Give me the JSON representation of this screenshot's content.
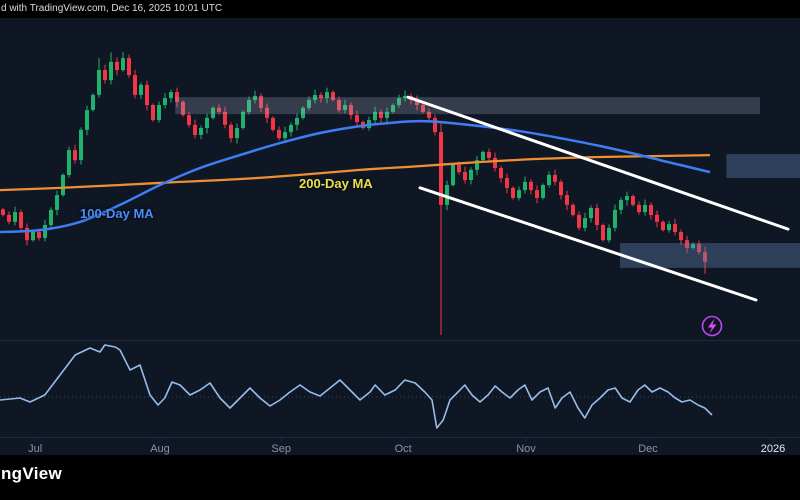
{
  "attribution": {
    "text": "d with TradingView.com, Dec 16, 2025 10:01 UTC"
  },
  "branding": {
    "logo_text": "ngView"
  },
  "labels": {
    "ma100": "100-Day MA",
    "ma200": "200-Day MA"
  },
  "colors": {
    "background": "#0f1624",
    "bar_bg": "#010101",
    "up": "#20b26a",
    "down": "#f23645",
    "ma100": "#3d7ef5",
    "ma200": "#ef8f33",
    "trendline": "#ffffff",
    "oscillator": "#96bce8",
    "label_ma100": "#4a8cf8",
    "label_ma200": "#e8e04e",
    "axis_text": "#8b93a6",
    "axis_year": "#e8ebf2",
    "separator": "#1e2840",
    "midline": "#39435c",
    "flash": "#b44cf0",
    "flash_bolt": "#cf54f6"
  },
  "chart_data": {
    "type": "candlestick",
    "title": "",
    "note": "price axis not visible in screenshot; values normalized 0-100",
    "ylim": [
      0,
      100
    ],
    "x_axis": {
      "ticks": [
        {
          "label": "Jul",
          "x": 0.044
        },
        {
          "label": "Aug",
          "x": 0.2
        },
        {
          "label": "Sep",
          "x": 0.3515
        },
        {
          "label": "Oct",
          "x": 0.504
        },
        {
          "label": "Nov",
          "x": 0.6575
        },
        {
          "label": "Dec",
          "x": 0.81
        },
        {
          "label": "2026",
          "x": 0.9663,
          "bright": true
        }
      ]
    },
    "candles": {
      "first_open": 41.5,
      "closes": [
        39.7,
        37.5,
        40.6,
        35.6,
        31.7,
        34.3,
        32.4,
        36.5,
        41.3,
        46.0,
        52.4,
        60.3,
        57.1,
        66.7,
        73.0,
        77.8,
        85.7,
        82.5,
        88.3,
        85.7,
        89.5,
        84.1,
        77.8,
        81.0,
        74.6,
        69.8,
        74.6,
        76.8,
        78.7,
        75.6,
        71.4,
        68.3,
        65.1,
        67.3,
        70.5,
        73.7,
        72.4,
        68.3,
        64.1,
        67.3,
        72.4,
        76.2,
        77.5,
        73.7,
        70.5,
        66.7,
        64.1,
        66.0,
        68.3,
        70.5,
        73.7,
        76.2,
        77.8,
        76.8,
        78.7,
        76.2,
        73.0,
        74.6,
        71.4,
        69.2,
        67.3,
        69.8,
        72.4,
        70.5,
        72.4,
        74.6,
        76.8,
        77.5,
        76.2,
        74.6,
        72.4,
        70.5,
        66.0,
        42.9,
        49.2,
        55.6,
        53.3,
        50.8,
        54.0,
        57.1,
        59.7,
        57.8,
        54.6,
        51.4,
        48.3,
        45.1,
        47.6,
        50.2,
        47.6,
        45.1,
        49.2,
        52.4,
        50.2,
        46.0,
        42.9,
        39.7,
        35.6,
        38.7,
        41.9,
        36.5,
        31.7,
        35.6,
        41.3,
        44.4,
        45.7,
        42.9,
        40.6,
        42.9,
        39.7,
        37.5,
        34.9,
        36.8,
        34.3,
        31.7,
        29.2,
        30.5,
        27.9,
        24.8
      ],
      "wick_overrides": {
        "16": {
          "high": 89.5
        },
        "18": {
          "high": 91.3
        },
        "20": {
          "high": 91.4
        },
        "72": {
          "high": 71.5
        },
        "73": {
          "high": 69.0,
          "low": 1.6
        },
        "117": {
          "low": 21.0
        }
      }
    },
    "overlays": {
      "ma100": [
        [
          0,
          34.3
        ],
        [
          0.05,
          34.9
        ],
        [
          0.1,
          37.5
        ],
        [
          0.15,
          42.9
        ],
        [
          0.2,
          49.2
        ],
        [
          0.25,
          54.6
        ],
        [
          0.3,
          58.7
        ],
        [
          0.35,
          62.5
        ],
        [
          0.4,
          65.7
        ],
        [
          0.45,
          67.9
        ],
        [
          0.5,
          69.2
        ],
        [
          0.525,
          69.5
        ],
        [
          0.55,
          69.2
        ],
        [
          0.6,
          67.9
        ],
        [
          0.65,
          66.3
        ],
        [
          0.7,
          64.1
        ],
        [
          0.75,
          61.6
        ],
        [
          0.8,
          58.7
        ],
        [
          0.825,
          57.1
        ],
        [
          0.85,
          55.6
        ],
        [
          0.8875,
          53.3
        ]
      ],
      "ma200": [
        [
          0,
          47.6
        ],
        [
          0.075,
          48.3
        ],
        [
          0.15,
          49.2
        ],
        [
          0.225,
          50.2
        ],
        [
          0.3,
          51.1
        ],
        [
          0.375,
          52.4
        ],
        [
          0.45,
          54.0
        ],
        [
          0.525,
          55.2
        ],
        [
          0.6,
          56.5
        ],
        [
          0.675,
          57.5
        ],
        [
          0.75,
          58.1
        ],
        [
          0.825,
          58.4
        ],
        [
          0.8875,
          58.7
        ]
      ],
      "trendlines": [
        {
          "x1": 0.51,
          "v1": 77.1,
          "x2": 0.985,
          "v2": 35.2
        },
        {
          "x1": 0.525,
          "v1": 48.3,
          "x2": 0.945,
          "v2": 12.7
        }
      ],
      "zones": [
        {
          "x1": 0.219,
          "x2": 0.95,
          "v_top": 77.1,
          "v_bot": 71.7,
          "color": "rgba(162,174,196,0.26)"
        },
        {
          "x1": 0.908,
          "x2": 1.0,
          "v_top": 59.0,
          "v_bot": 51.4,
          "color": "rgba(96,132,178,0.38)"
        },
        {
          "x1": 0.775,
          "x2": 1.0,
          "v_top": 30.8,
          "v_bot": 22.9,
          "color": "rgba(96,132,178,0.38)"
        }
      ]
    },
    "lower_panel": {
      "type": "line",
      "name": "momentum-oscillator",
      "midline": 50,
      "points": [
        [
          0,
          47.6
        ],
        [
          0.025,
          49.2
        ],
        [
          0.0375,
          46.0
        ],
        [
          0.056,
          51.6
        ],
        [
          0.075,
          67.6
        ],
        [
          0.094,
          83.6
        ],
        [
          0.1125,
          89.2
        ],
        [
          0.125,
          86.0
        ],
        [
          0.131,
          91.6
        ],
        [
          0.144,
          90.0
        ],
        [
          0.15,
          87.6
        ],
        [
          0.1625,
          71.6
        ],
        [
          0.175,
          75.6
        ],
        [
          0.1875,
          51.6
        ],
        [
          0.1975,
          43.6
        ],
        [
          0.206,
          49.2
        ],
        [
          0.215,
          62.0
        ],
        [
          0.225,
          59.6
        ],
        [
          0.2375,
          51.6
        ],
        [
          0.25,
          55.6
        ],
        [
          0.2625,
          61.2
        ],
        [
          0.275,
          49.2
        ],
        [
          0.2875,
          41.2
        ],
        [
          0.3,
          49.2
        ],
        [
          0.3125,
          57.2
        ],
        [
          0.325,
          49.2
        ],
        [
          0.3375,
          42.8
        ],
        [
          0.35,
          47.6
        ],
        [
          0.3625,
          54.0
        ],
        [
          0.375,
          59.6
        ],
        [
          0.3875,
          54.0
        ],
        [
          0.4,
          50.8
        ],
        [
          0.4125,
          57.2
        ],
        [
          0.425,
          63.6
        ],
        [
          0.4375,
          55.6
        ],
        [
          0.45,
          47.6
        ],
        [
          0.4625,
          54.0
        ],
        [
          0.469,
          59.6
        ],
        [
          0.481,
          51.6
        ],
        [
          0.494,
          55.6
        ],
        [
          0.506,
          63.6
        ],
        [
          0.519,
          61.2
        ],
        [
          0.531,
          54.0
        ],
        [
          0.54,
          47.6
        ],
        [
          0.546,
          25.2
        ],
        [
          0.554,
          31.6
        ],
        [
          0.5625,
          47.6
        ],
        [
          0.5725,
          54.0
        ],
        [
          0.581,
          59.6
        ],
        [
          0.59,
          51.6
        ],
        [
          0.6,
          46.0
        ],
        [
          0.61,
          51.6
        ],
        [
          0.619,
          58.8
        ],
        [
          0.6275,
          54.0
        ],
        [
          0.6375,
          49.2
        ],
        [
          0.6475,
          55.6
        ],
        [
          0.656,
          59.6
        ],
        [
          0.665,
          47.6
        ],
        [
          0.675,
          54.0
        ],
        [
          0.685,
          57.2
        ],
        [
          0.694,
          41.2
        ],
        [
          0.7025,
          49.2
        ],
        [
          0.7125,
          54.0
        ],
        [
          0.7225,
          41.2
        ],
        [
          0.731,
          33.2
        ],
        [
          0.74,
          43.6
        ],
        [
          0.75,
          49.2
        ],
        [
          0.76,
          55.6
        ],
        [
          0.769,
          57.2
        ],
        [
          0.7775,
          49.2
        ],
        [
          0.7875,
          46.0
        ],
        [
          0.7975,
          55.6
        ],
        [
          0.806,
          59.6
        ],
        [
          0.815,
          54.0
        ],
        [
          0.825,
          57.2
        ],
        [
          0.835,
          54.0
        ],
        [
          0.844,
          49.2
        ],
        [
          0.8525,
          46.0
        ],
        [
          0.8625,
          47.6
        ],
        [
          0.8725,
          43.6
        ],
        [
          0.881,
          41.2
        ],
        [
          0.89,
          35.6
        ]
      ]
    }
  }
}
